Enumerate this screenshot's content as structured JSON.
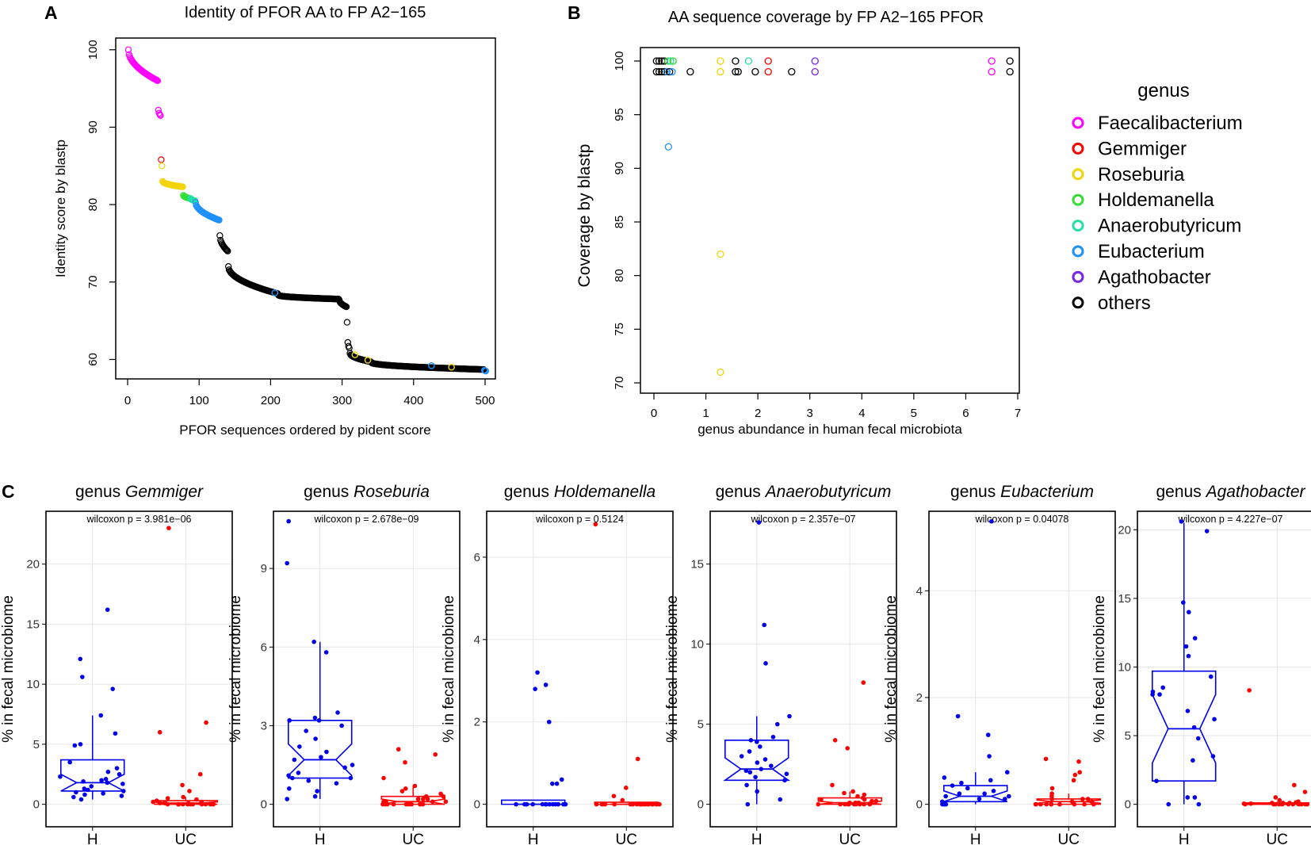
{
  "panel_labels": {
    "a": "A",
    "b": "B",
    "c": "C"
  },
  "colors": {
    "Faecalibacterium": "#ff00ff",
    "Gemmiger": "#ff0000",
    "Roseburia": "#f2d40a",
    "Holdemanella": "#33dd33",
    "Anaerobutyricum": "#22e0a8",
    "Eubacterium": "#1e90ff",
    "Agathobacter": "#7a22ee",
    "others": "#000000",
    "H": "#0000ee",
    "UC": "#ff0000"
  },
  "chart_data": [
    {
      "type": "scatter",
      "title": "Identity of PFOR AA to FP A2−165",
      "xlabel": "PFOR sequences ordered by pident score",
      "ylabel": "Identity score by blastp",
      "xlim": [
        0,
        500
      ],
      "ylim": [
        58,
        101
      ],
      "xticks": [
        "0",
        "100",
        "200",
        "300",
        "400",
        "500"
      ],
      "yticks": [
        "60",
        "70",
        "80",
        "90",
        "100"
      ],
      "segments": [
        {
          "genus": "Faecalibacterium",
          "x_from": 1,
          "x_to": 42,
          "y_from": 100,
          "y_to": 96
        },
        {
          "genus": "Faecalibacterium",
          "x_from": 43,
          "x_to": 46,
          "y_from": 92.2,
          "y_to": 91.5
        },
        {
          "genus": "Gemmiger",
          "x_from": 47,
          "x_to": 47,
          "y_from": 85.8,
          "y_to": 85.8
        },
        {
          "genus": "Roseburia",
          "x_from": 48,
          "x_to": 48,
          "y_from": 85,
          "y_to": 85
        },
        {
          "genus": "Roseburia",
          "x_from": 49,
          "x_to": 77,
          "y_from": 83,
          "y_to": 82.3
        },
        {
          "genus": "Holdemanella",
          "x_from": 78,
          "x_to": 87,
          "y_from": 81.2,
          "y_to": 80.8
        },
        {
          "genus": "Anaerobutyricum",
          "x_from": 88,
          "x_to": 94,
          "y_from": 80.8,
          "y_to": 80.5
        },
        {
          "genus": "Eubacterium",
          "x_from": 95,
          "x_to": 128,
          "y_from": 80.3,
          "y_to": 78
        },
        {
          "genus": "others",
          "x_from": 129,
          "x_to": 140,
          "y_from": 76,
          "y_to": 74
        },
        {
          "genus": "others",
          "x_from": 141,
          "x_to": 210,
          "y_from": 72,
          "y_to": 68.5
        },
        {
          "genus": "others",
          "x_from": 211,
          "x_to": 295,
          "y_from": 68.3,
          "y_to": 67.8
        },
        {
          "genus": "others",
          "x_from": 296,
          "x_to": 306,
          "y_from": 67.7,
          "y_to": 66.8
        },
        {
          "genus": "others",
          "x_from": 307,
          "x_to": 307,
          "y_from": 64.8,
          "y_to": 64.8
        },
        {
          "genus": "others",
          "x_from": 308,
          "x_to": 310,
          "y_from": 62.2,
          "y_to": 61.5
        },
        {
          "genus": "others",
          "x_from": 311,
          "x_to": 340,
          "y_from": 60.8,
          "y_to": 59.7
        },
        {
          "genus": "others",
          "x_from": 341,
          "x_to": 498,
          "y_from": 59.6,
          "y_to": 58.7
        },
        {
          "genus": "Eubacterium",
          "x_from": 499,
          "x_to": 501,
          "y_from": 58.6,
          "y_to": 58.5
        }
      ],
      "highlight_points": [
        {
          "x": 206,
          "y": 68.6,
          "genus": "Eubacterium"
        },
        {
          "x": 318,
          "y": 60.6,
          "genus": "Roseburia"
        },
        {
          "x": 336,
          "y": 59.9,
          "genus": "Roseburia"
        },
        {
          "x": 425,
          "y": 59.2,
          "genus": "Eubacterium"
        },
        {
          "x": 453,
          "y": 59.0,
          "genus": "Roseburia"
        }
      ]
    },
    {
      "type": "scatter",
      "title": "AA sequence coverage by FP A2−165 PFOR",
      "xlabel": "genus abundance in human fecal microbiota",
      "ylabel": "Coverage by blastp",
      "xlim": [
        0,
        7
      ],
      "ylim": [
        70,
        100
      ],
      "xticks": [
        "0",
        "1",
        "2",
        "3",
        "4",
        "5",
        "6",
        "7"
      ],
      "yticks": [
        "70",
        "75",
        "80",
        "85",
        "90",
        "95",
        "100"
      ],
      "legend_title": "genus",
      "legend": [
        "Faecalibacterium",
        "Gemmiger",
        "Roseburia",
        "Holdemanella",
        "Anaerobutyricum",
        "Eubacterium",
        "Agathobacter",
        "others"
      ],
      "points": [
        {
          "x": 0.05,
          "y": 100,
          "genus": "others"
        },
        {
          "x": 0.1,
          "y": 100,
          "genus": "others"
        },
        {
          "x": 0.15,
          "y": 100,
          "genus": "others"
        },
        {
          "x": 0.2,
          "y": 100,
          "genus": "others"
        },
        {
          "x": 0.27,
          "y": 100,
          "genus": "Holdemanella"
        },
        {
          "x": 0.32,
          "y": 100,
          "genus": "Anaerobutyricum"
        },
        {
          "x": 0.37,
          "y": 100,
          "genus": "Holdemanella"
        },
        {
          "x": 0.05,
          "y": 99,
          "genus": "others"
        },
        {
          "x": 0.1,
          "y": 99,
          "genus": "others"
        },
        {
          "x": 0.15,
          "y": 99,
          "genus": "others"
        },
        {
          "x": 0.2,
          "y": 99,
          "genus": "others"
        },
        {
          "x": 0.25,
          "y": 99,
          "genus": "Eubacterium"
        },
        {
          "x": 0.3,
          "y": 99,
          "genus": "others"
        },
        {
          "x": 0.35,
          "y": 99,
          "genus": "Eubacterium"
        },
        {
          "x": 0.7,
          "y": 99,
          "genus": "others"
        },
        {
          "x": 0.28,
          "y": 92,
          "genus": "Eubacterium"
        },
        {
          "x": 1.28,
          "y": 100,
          "genus": "Roseburia"
        },
        {
          "x": 1.28,
          "y": 99,
          "genus": "Roseburia"
        },
        {
          "x": 1.28,
          "y": 82,
          "genus": "Roseburia"
        },
        {
          "x": 1.28,
          "y": 71,
          "genus": "Roseburia"
        },
        {
          "x": 1.57,
          "y": 100,
          "genus": "others"
        },
        {
          "x": 1.57,
          "y": 99,
          "genus": "others"
        },
        {
          "x": 1.62,
          "y": 99,
          "genus": "others"
        },
        {
          "x": 1.82,
          "y": 100,
          "genus": "Anaerobutyricum"
        },
        {
          "x": 1.95,
          "y": 99,
          "genus": "others"
        },
        {
          "x": 2.2,
          "y": 100,
          "genus": "Gemmiger"
        },
        {
          "x": 2.2,
          "y": 99,
          "genus": "Gemmiger"
        },
        {
          "x": 2.65,
          "y": 99,
          "genus": "others"
        },
        {
          "x": 3.1,
          "y": 100,
          "genus": "Agathobacter"
        },
        {
          "x": 3.1,
          "y": 99,
          "genus": "Agathobacter"
        },
        {
          "x": 6.5,
          "y": 100,
          "genus": "Faecalibacterium"
        },
        {
          "x": 6.5,
          "y": 99,
          "genus": "Faecalibacterium"
        },
        {
          "x": 6.85,
          "y": 100,
          "genus": "others"
        },
        {
          "x": 6.85,
          "y": 99,
          "genus": "others"
        }
      ]
    },
    {
      "type": "box",
      "title_prefix": "genus",
      "genus": "Gemmiger",
      "test_label": "wilcoxon p = 3.981e−06",
      "ylabel": "% in fecal microbiome",
      "categories": [
        "H",
        "UC"
      ],
      "ylim": [
        0,
        24
      ],
      "ytick_values": [
        0,
        5,
        10,
        15,
        20
      ],
      "yticks": [
        "0",
        "5",
        "10",
        "15",
        "20"
      ],
      "groups": [
        {
          "name": "H",
          "min": 0.4,
          "q1": 1.1,
          "median": 1.8,
          "q3": 3.7,
          "max": 7.4,
          "notch": 0.7,
          "points": [
            0.4,
            0.6,
            0.7,
            0.8,
            0.9,
            1.0,
            1.1,
            1.2,
            1.3,
            1.5,
            1.7,
            1.8,
            1.9,
            2.0,
            2.1,
            2.3,
            2.5,
            2.7,
            3.0,
            3.5,
            4.9,
            5.0,
            5.9,
            7.4,
            9.6,
            10.6,
            12.1,
            16.2
          ]
        },
        {
          "name": "UC",
          "min": 0.0,
          "q1": 0.0,
          "median": 0.1,
          "q3": 0.3,
          "max": 0.6,
          "notch": 0.1,
          "points": [
            0,
            0,
            0,
            0,
            0,
            0,
            0,
            0,
            0,
            0,
            0,
            0,
            0,
            0.1,
            0.1,
            0.1,
            0.1,
            0.2,
            0.2,
            0.3,
            0.4,
            0.5,
            0.6,
            1.1,
            1.6,
            2.5,
            6.0,
            6.8,
            23.0
          ]
        }
      ]
    },
    {
      "type": "box",
      "title_prefix": "genus",
      "genus": "Roseburia",
      "test_label": "wilcoxon p = 2.678e−09",
      "ylabel": "% in fecal microbiome",
      "categories": [
        "H",
        "UC"
      ],
      "ylim": [
        0,
        11
      ],
      "ytick_values": [
        0,
        3,
        6,
        9
      ],
      "yticks": [
        "0",
        "3",
        "6",
        "9"
      ],
      "groups": [
        {
          "name": "H",
          "min": 0.2,
          "q1": 1.0,
          "median": 1.7,
          "q3": 3.2,
          "max": 6.2,
          "notch": 0.6,
          "points": [
            0.2,
            0.3,
            0.5,
            0.6,
            0.8,
            0.9,
            1.0,
            1.0,
            1.1,
            1.2,
            1.4,
            1.5,
            1.7,
            1.8,
            2.0,
            2.2,
            2.5,
            2.8,
            3.0,
            3.2,
            3.2,
            3.3,
            3.5,
            5.8,
            6.2,
            9.2,
            10.8
          ]
        },
        {
          "name": "UC",
          "min": 0.0,
          "q1": 0.0,
          "median": 0.1,
          "q3": 0.3,
          "max": 0.7,
          "notch": 0.1,
          "points": [
            0,
            0,
            0,
            0,
            0,
            0,
            0,
            0,
            0,
            0,
            0.1,
            0.1,
            0.1,
            0.1,
            0.1,
            0.2,
            0.2,
            0.2,
            0.3,
            0.3,
            0.4,
            0.5,
            0.6,
            0.7,
            1.0,
            1.6,
            1.9,
            2.1
          ]
        }
      ]
    },
    {
      "type": "box",
      "title_prefix": "genus",
      "genus": "Holdemanella",
      "test_label": "wilcoxon p = 0.5124",
      "ylabel": "% in fecal microbiome",
      "categories": [
        "H",
        "UC"
      ],
      "ylim": [
        0,
        7
      ],
      "ytick_values": [
        0,
        2,
        4,
        6
      ],
      "yticks": [
        "0",
        "2",
        "4",
        "6"
      ],
      "groups": [
        {
          "name": "H",
          "min": 0.0,
          "q1": 0.0,
          "median": 0.0,
          "q3": 0.1,
          "max": 0.1,
          "notch": 0.0,
          "points": [
            0,
            0,
            0,
            0,
            0,
            0,
            0,
            0,
            0,
            0,
            0,
            0,
            0,
            0,
            0,
            0,
            0,
            0.5,
            0.5,
            0.6,
            2.0,
            2.8,
            2.9,
            3.2
          ]
        },
        {
          "name": "UC",
          "min": 0.0,
          "q1": 0.0,
          "median": 0.0,
          "q3": 0.05,
          "max": 0.05,
          "notch": 0.0,
          "points": [
            0,
            0,
            0,
            0,
            0,
            0,
            0,
            0,
            0,
            0,
            0,
            0,
            0,
            0,
            0,
            0,
            0,
            0,
            0,
            0,
            0,
            0.1,
            0.2,
            0.4,
            1.1,
            6.8
          ]
        }
      ]
    },
    {
      "type": "box",
      "title_prefix": "genus",
      "genus": "Anaerobutyricum",
      "test_label": "wilcoxon p = 2.357e−07",
      "ylabel": "% in fecal microbiome",
      "categories": [
        "H",
        "UC"
      ],
      "ylim": [
        0,
        18
      ],
      "ytick_values": [
        0,
        5,
        10,
        15
      ],
      "yticks": [
        "0",
        "5",
        "10",
        "15"
      ],
      "groups": [
        {
          "name": "H",
          "min": 0.0,
          "q1": 1.5,
          "median": 2.2,
          "q3": 4.0,
          "max": 5.5,
          "notch": 0.7,
          "points": [
            0,
            0.3,
            0.8,
            1.2,
            1.5,
            1.7,
            1.9,
            2.0,
            2.1,
            2.2,
            2.4,
            2.6,
            2.8,
            3.0,
            3.3,
            3.6,
            3.9,
            4.0,
            4.2,
            5.0,
            5.5,
            8.8,
            11.2,
            17.6
          ]
        },
        {
          "name": "UC",
          "min": 0.0,
          "q1": 0.0,
          "median": 0.1,
          "q3": 0.4,
          "max": 0.8,
          "notch": 0.1,
          "points": [
            0,
            0,
            0,
            0,
            0,
            0,
            0,
            0,
            0,
            0,
            0.1,
            0.1,
            0.1,
            0.2,
            0.2,
            0.3,
            0.3,
            0.4,
            0.5,
            0.6,
            0.7,
            0.8,
            1.2,
            3.5,
            4.0,
            7.6
          ]
        }
      ]
    },
    {
      "type": "box",
      "title_prefix": "genus",
      "genus": "Eubacterium",
      "test_label": "wilcoxon p = 0.04078",
      "ylabel": "% in fecal microbiome",
      "categories": [
        "H",
        "UC"
      ],
      "ylim": [
        0,
        5.4
      ],
      "ytick_values": [
        0,
        2,
        4
      ],
      "yticks": [
        "0",
        "2",
        "4"
      ],
      "groups": [
        {
          "name": "H",
          "min": 0.0,
          "q1": 0.05,
          "median": 0.15,
          "q3": 0.35,
          "max": 0.6,
          "notch": 0.1,
          "points": [
            0,
            0,
            0,
            0,
            0.05,
            0.1,
            0.1,
            0.15,
            0.15,
            0.2,
            0.2,
            0.25,
            0.3,
            0.35,
            0.4,
            0.45,
            0.5,
            0.6,
            0.9,
            1.3,
            1.65,
            5.3
          ]
        },
        {
          "name": "UC",
          "min": 0.0,
          "q1": 0.0,
          "median": 0.05,
          "q3": 0.1,
          "max": 0.2,
          "notch": 0.03,
          "points": [
            0,
            0,
            0,
            0,
            0,
            0,
            0,
            0,
            0,
            0,
            0.05,
            0.05,
            0.1,
            0.1,
            0.1,
            0.15,
            0.2,
            0.3,
            0.45,
            0.55,
            0.6,
            0.8,
            0.85
          ]
        }
      ]
    },
    {
      "type": "box",
      "title_prefix": "genus",
      "genus": "Agathobacter",
      "test_label": "wilcoxon p = 4.227e−07",
      "ylabel": "% in fecal microbiome",
      "categories": [
        "H",
        "UC"
      ],
      "ylim": [
        0,
        21
      ],
      "ytick_values": [
        0,
        5,
        10,
        15,
        20
      ],
      "yticks": [
        "0",
        "5",
        "10",
        "15",
        "20"
      ],
      "groups": [
        {
          "name": "H",
          "min": 0.0,
          "q1": 1.7,
          "median": 5.5,
          "q3": 9.7,
          "max": 20.5,
          "notch": 2.5,
          "points": [
            0,
            0,
            0.5,
            0.5,
            1.7,
            3.2,
            3.5,
            4.8,
            5.6,
            6.2,
            6.8,
            8.0,
            8.0,
            8.2,
            8.5,
            9.3,
            10.8,
            11.5,
            12.1,
            14.0,
            14.7,
            19.9,
            20.6
          ]
        },
        {
          "name": "UC",
          "min": 0.0,
          "q1": 0.0,
          "median": 0.0,
          "q3": 0.1,
          "max": 0.2,
          "notch": 0.05,
          "points": [
            0,
            0,
            0,
            0,
            0,
            0,
            0,
            0,
            0,
            0,
            0,
            0.05,
            0.05,
            0.1,
            0.1,
            0.1,
            0.15,
            0.2,
            0.3,
            0.5,
            0.9,
            1.4,
            8.3
          ]
        }
      ]
    }
  ]
}
